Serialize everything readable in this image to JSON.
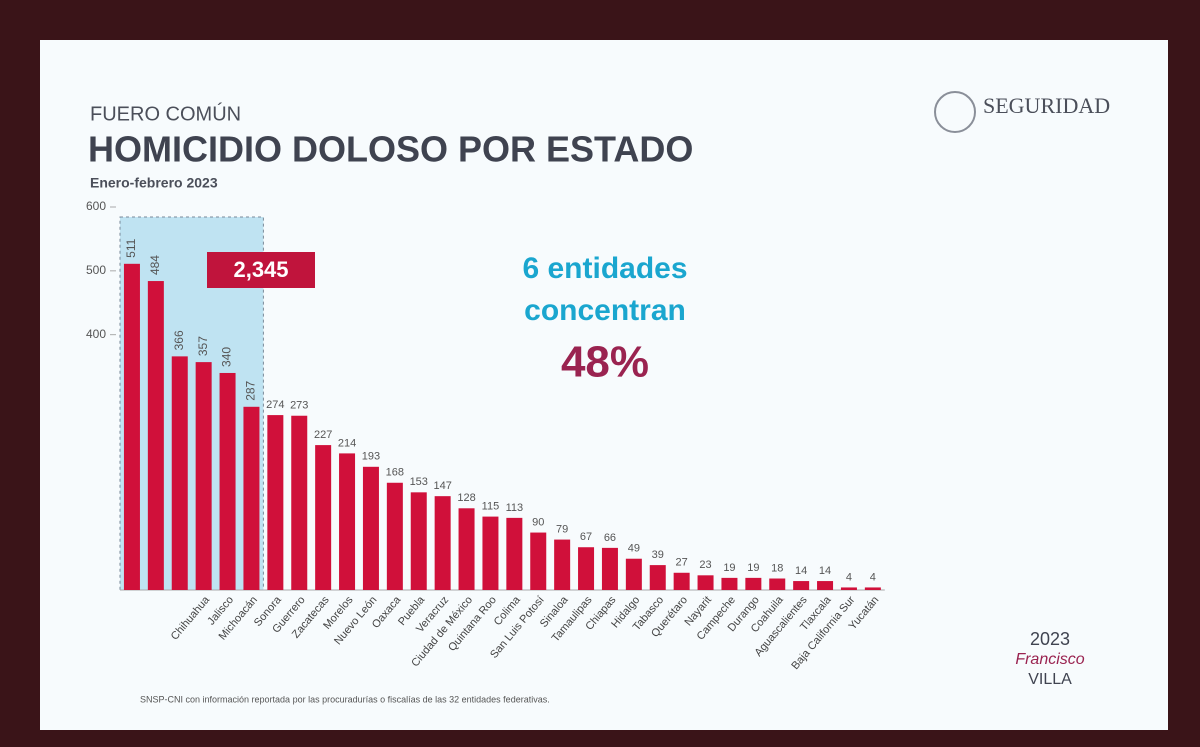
{
  "chart_data": {
    "type": "bar",
    "kicker": "FUERO COMÚN",
    "title": "HOMICIDIO DOLOSO POR ESTADO",
    "subtitle": "Enero-febrero 2023",
    "brand": "SEGURIDAD",
    "highlight_total": "2,345",
    "annotation_lines": [
      "6 entidades",
      "concentran"
    ],
    "annotation_share": "48%",
    "source": "SNSP-CNI con información reportada por las procuradurías o fiscalías de las 32 entidades federativas.",
    "logo": [
      "2023",
      "Francisco",
      "VILLA"
    ],
    "categories": [
      null,
      null,
      null,
      "Chihuahua",
      "Jalisco",
      "Michoacán",
      "Sonora",
      "Guerrero",
      "Zacatecas",
      "Morelos",
      "Nuevo León",
      "Oaxaca",
      "Puebla",
      "Veracruz",
      "Ciudad de México",
      "Quintana Roo",
      "Colima",
      "San Luis Potosí",
      "Sinaloa",
      "Tamaulipas",
      "Chiapas",
      "Hidalgo",
      "Tabasco",
      "Querétaro",
      "Nayarit",
      "Campeche",
      "Durango",
      "Coahuila",
      "Aguascalientes",
      "Tlaxcala",
      "Baja California Sur",
      "Yucatán"
    ],
    "values": [
      511,
      484,
      366,
      357,
      340,
      287,
      274,
      273,
      227,
      214,
      193,
      168,
      153,
      147,
      128,
      115,
      113,
      90,
      79,
      67,
      66,
      49,
      39,
      27,
      23,
      19,
      19,
      18,
      14,
      14,
      4,
      4
    ],
    "color": "#d0103a",
    "highlight_count": 6,
    "ylim": [
      0,
      600
    ],
    "yticks": [
      400,
      500,
      600
    ]
  }
}
